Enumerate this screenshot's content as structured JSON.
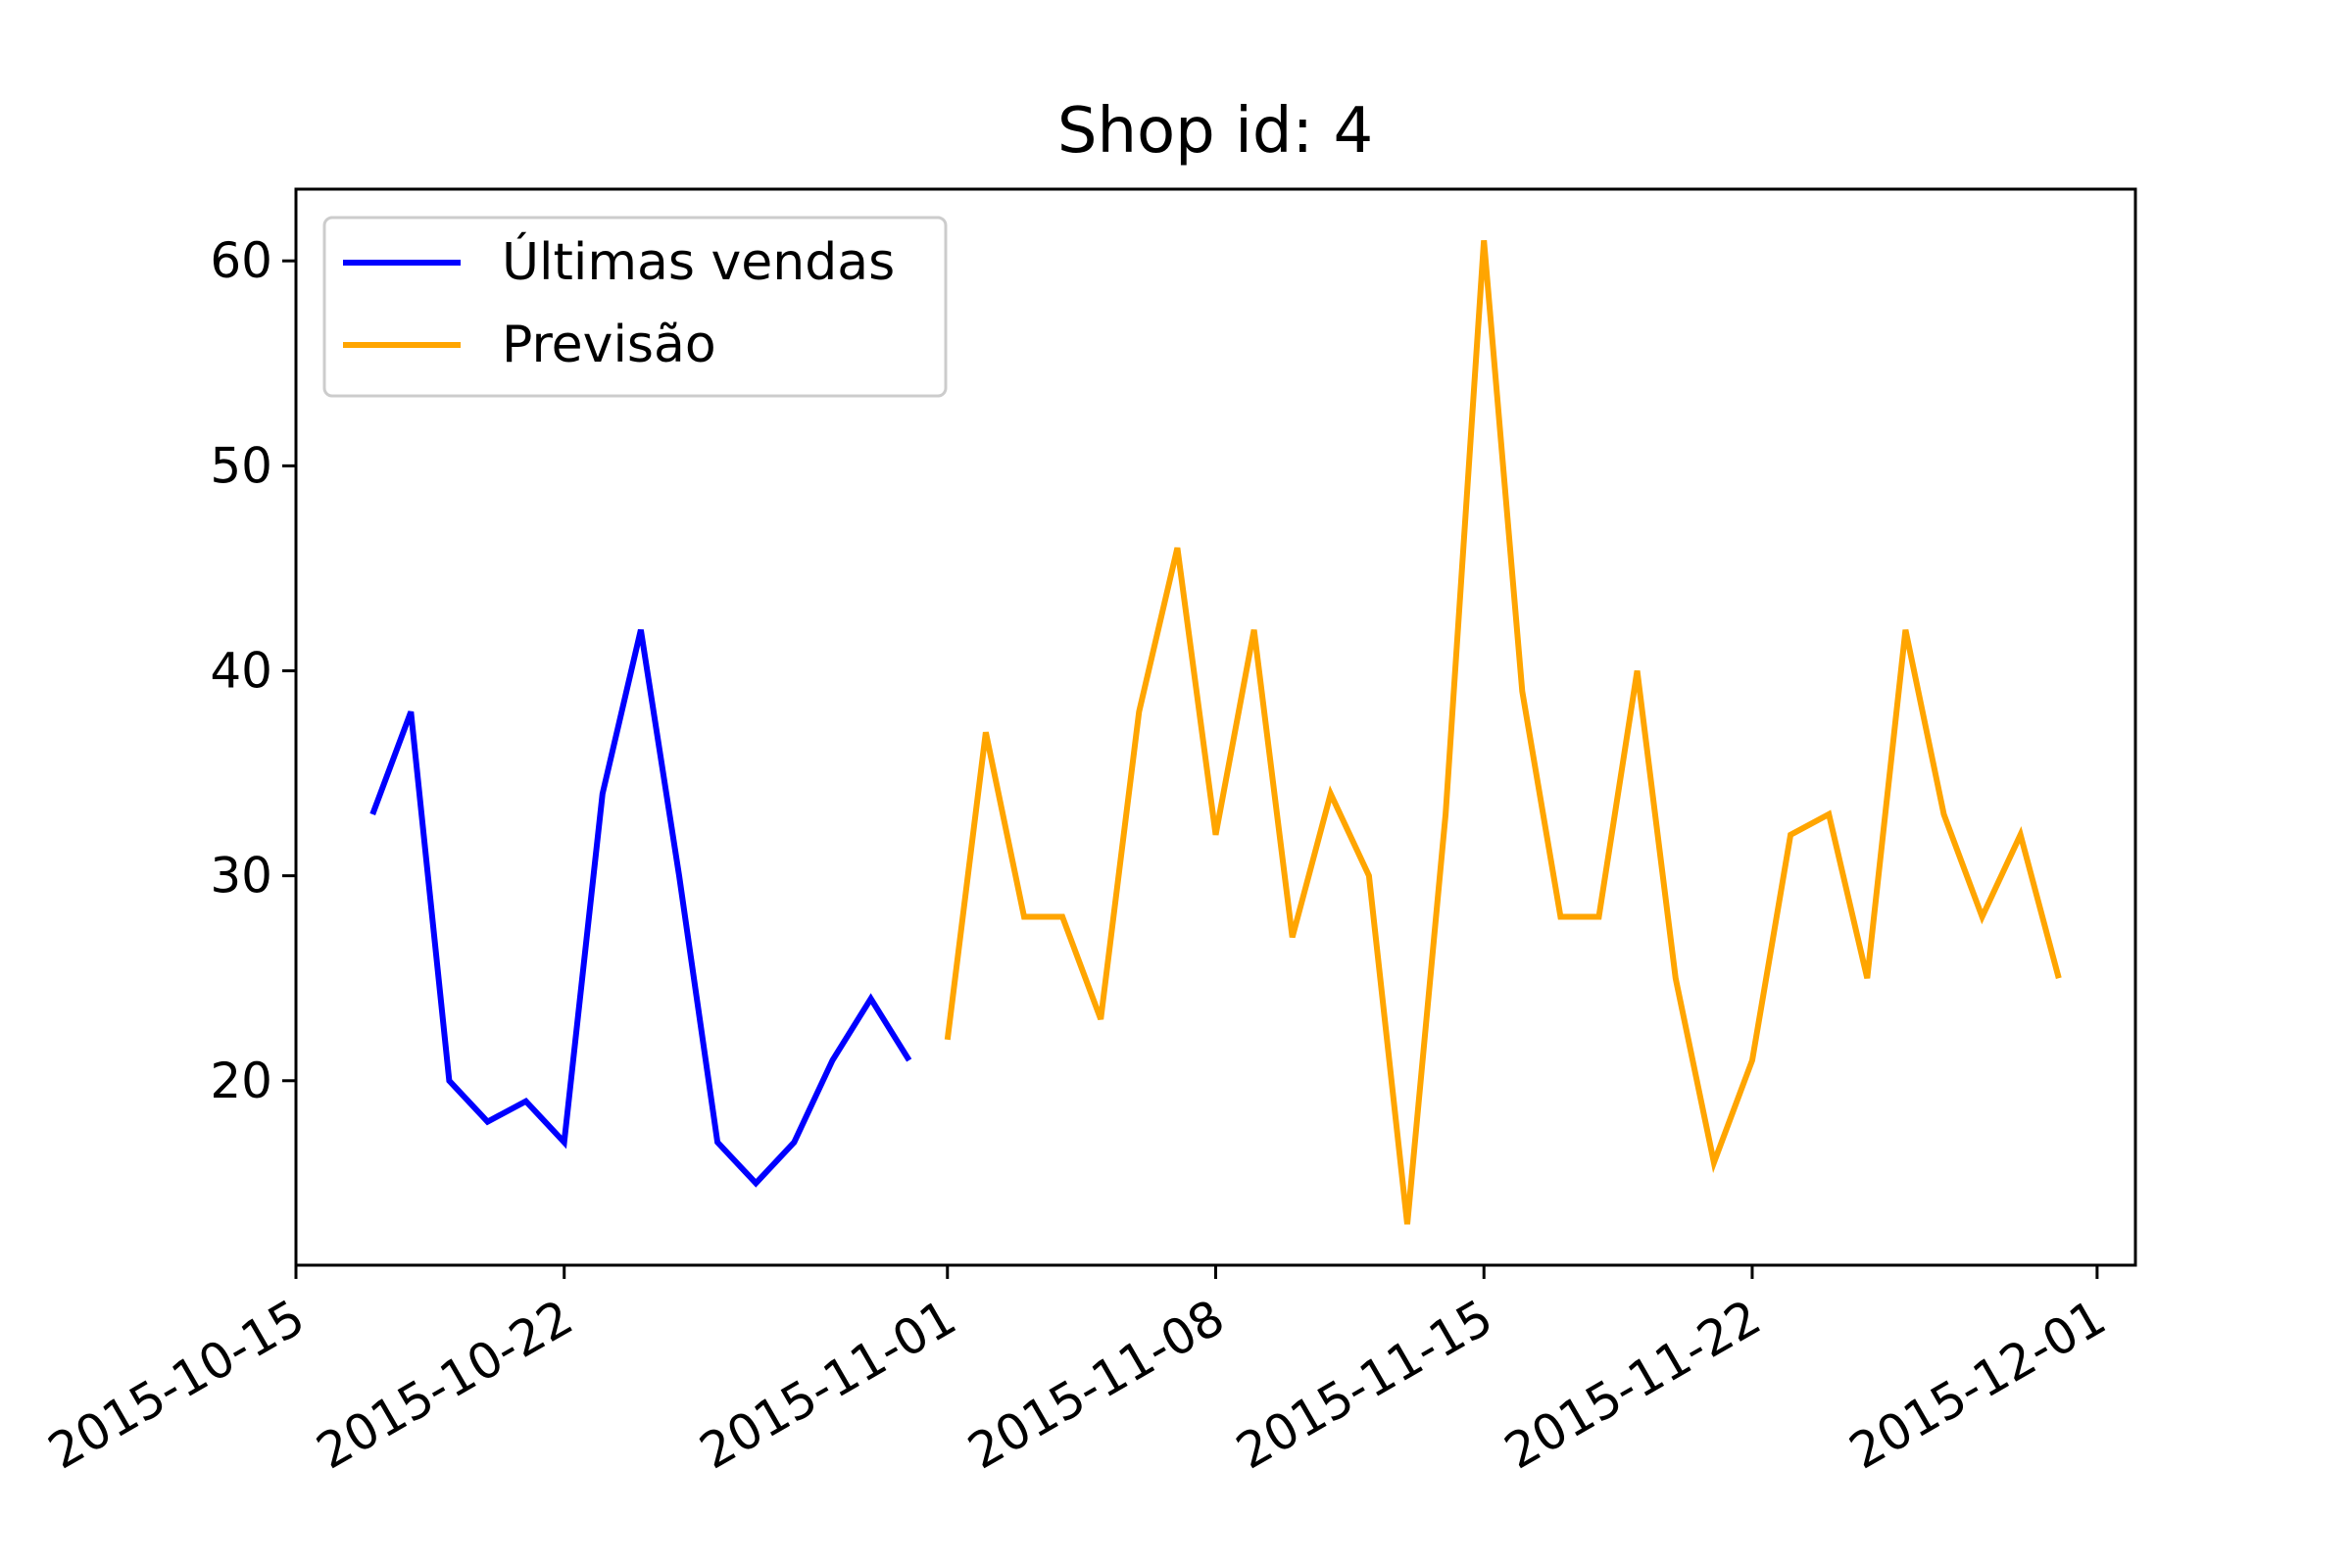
{
  "chart_data": {
    "type": "line",
    "title": "Shop id: 4",
    "xlabel": "",
    "ylabel": "",
    "x_axis_type": "date",
    "xlim": [
      "2015-10-15",
      "2015-12-02"
    ],
    "ylim": [
      11,
      63.5
    ],
    "x_ticks": [
      "2015-10-15",
      "2015-10-22",
      "2015-11-01",
      "2015-11-08",
      "2015-11-15",
      "2015-11-22",
      "2015-12-01"
    ],
    "y_ticks": [
      20,
      30,
      40,
      50,
      60
    ],
    "grid": false,
    "legend_position": "top-left",
    "series": [
      {
        "name": "Últimas vendas",
        "color": "#0000ff",
        "x": [
          "2015-10-17",
          "2015-10-18",
          "2015-10-19",
          "2015-10-20",
          "2015-10-21",
          "2015-10-22",
          "2015-10-23",
          "2015-10-24",
          "2015-10-25",
          "2015-10-26",
          "2015-10-27",
          "2015-10-28",
          "2015-10-29",
          "2015-10-30",
          "2015-10-31"
        ],
        "y": [
          33,
          38,
          20,
          18,
          19,
          17,
          34,
          42,
          30,
          17,
          15,
          17,
          21,
          24,
          21
        ]
      },
      {
        "name": "Previsão",
        "color": "#ffa500",
        "x": [
          "2015-11-01",
          "2015-11-02",
          "2015-11-03",
          "2015-11-04",
          "2015-11-05",
          "2015-11-06",
          "2015-11-07",
          "2015-11-08",
          "2015-11-09",
          "2015-11-10",
          "2015-11-11",
          "2015-11-12",
          "2015-11-13",
          "2015-11-14",
          "2015-11-15",
          "2015-11-16",
          "2015-11-17",
          "2015-11-18",
          "2015-11-19",
          "2015-11-20",
          "2015-11-21",
          "2015-11-22",
          "2015-11-23",
          "2015-11-24",
          "2015-11-25",
          "2015-11-26",
          "2015-11-27",
          "2015-11-28",
          "2015-11-29",
          "2015-11-30"
        ],
        "y": [
          22,
          37,
          28,
          28,
          23,
          38,
          46,
          32,
          42,
          27,
          34,
          30,
          13,
          33,
          61,
          39,
          28,
          28,
          40,
          25,
          16,
          21,
          32,
          33,
          25,
          42,
          33,
          28,
          32,
          25
        ]
      }
    ]
  }
}
